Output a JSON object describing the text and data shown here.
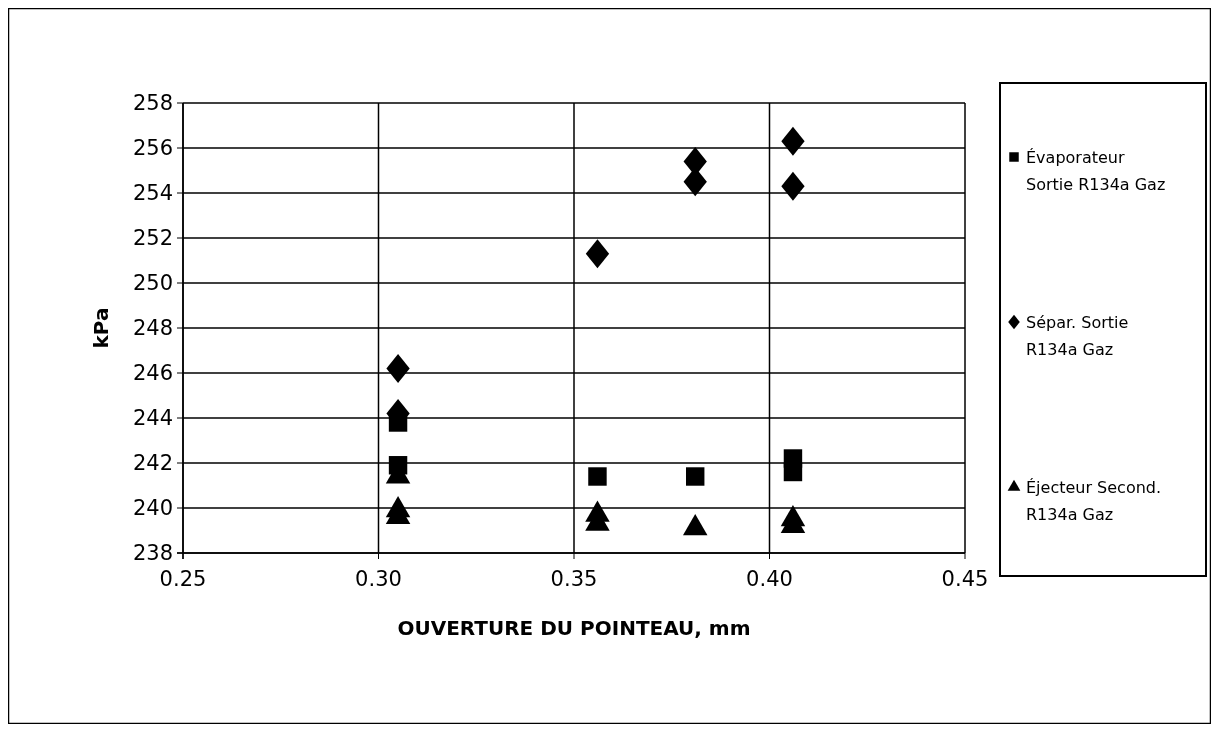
{
  "chart_data": {
    "type": "scatter",
    "xlabel": "OUVERTURE DU POINTEAU, mm",
    "ylabel": "kPa",
    "xlim": [
      0.25,
      0.45
    ],
    "xticks": [
      {
        "value": 0.25,
        "label": "0.25"
      },
      {
        "value": 0.3,
        "label": "0.30"
      },
      {
        "value": 0.35,
        "label": "0.35"
      },
      {
        "value": 0.4,
        "label": "0.40"
      },
      {
        "value": 0.45,
        "label": "0.45"
      }
    ],
    "ylim": [
      238,
      258
    ],
    "yticks": [
      238,
      240,
      242,
      244,
      246,
      248,
      250,
      252,
      254,
      256,
      258
    ],
    "grid": true,
    "legend": "right",
    "series": [
      {
        "name": "Évaporateur Sortie R134a Gaz",
        "color": "#000000",
        "marker": "square",
        "x": [
          0.305,
          0.305,
          0.356,
          0.381,
          0.406,
          0.406
        ],
        "values": [
          243.8,
          241.9,
          241.4,
          241.4,
          242.2,
          241.6
        ]
      },
      {
        "name": "Sépar. Sortie R134a Gaz",
        "color": "#000000",
        "marker": "diamond",
        "x": [
          0.305,
          0.305,
          0.356,
          0.381,
          0.381,
          0.406,
          0.406
        ],
        "values": [
          246.2,
          244.2,
          251.3,
          255.4,
          254.5,
          256.3,
          254.3
        ]
      },
      {
        "name": "Éjecteur Second. R134a Gaz",
        "color": "#000000",
        "marker": "triangle",
        "x": [
          0.305,
          0.305,
          0.305,
          0.356,
          0.356,
          0.381,
          0.406,
          0.406
        ],
        "values": [
          241.4,
          239.9,
          239.6,
          239.7,
          239.3,
          239.1,
          239.5,
          239.2
        ]
      }
    ]
  }
}
